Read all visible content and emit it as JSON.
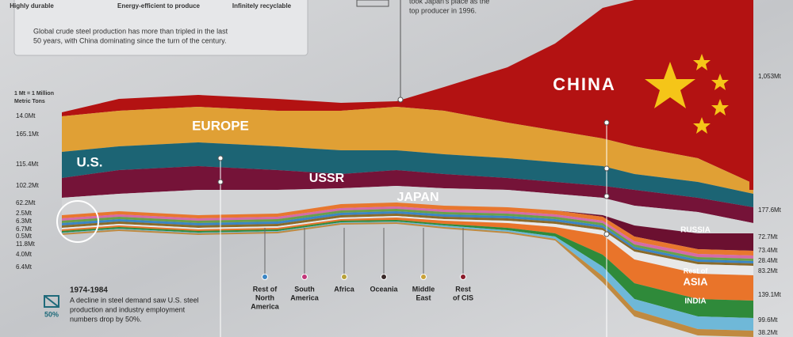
{
  "info_panel": {
    "features": [
      "Highly durable",
      "Energy-efficient to produce",
      "Infinitely recyclable"
    ],
    "text": [
      "Global crude steel production has more than tripled in the last",
      "50 years, with China dominating since the turn of the century."
    ]
  },
  "callout": {
    "lines": [
      "took Japan's place as the",
      "top producer in 1996."
    ]
  },
  "unit_note": [
    "1 Mt = 1 Million",
    "Metric Tons"
  ],
  "left_values": [
    "14.0Mt",
    "165.1Mt",
    "115.4Mt",
    "102.2Mt",
    "62.2Mt",
    "2.5Mt",
    "6.3Mt",
    "6.7Mt",
    "0.5Mt",
    "11.8Mt",
    "4.0Mt",
    "6.4Mt"
  ],
  "right_values": [
    "1,053Mt",
    "177.6Mt",
    "72.7Mt",
    "73.4Mt",
    "28.4Mt",
    "83.2Mt",
    "139.1Mt",
    "99.6Mt",
    "38.2Mt"
  ],
  "region_labels": {
    "china": "CHINA",
    "europe": "EUROPE",
    "us": "U.S.",
    "ussr": "USSR",
    "japan": "JAPAN",
    "russia": "RUSSIA",
    "rest_of_asia": [
      "Rest of",
      "ASIA"
    ],
    "india": "INDIA"
  },
  "legend": [
    {
      "lines": [
        "Rest of",
        "North",
        "America"
      ],
      "color": "#3b86c4"
    },
    {
      "lines": [
        "South",
        "America"
      ],
      "color": "#c2377a"
    },
    {
      "lines": [
        "Africa"
      ],
      "color": "#b8a23a"
    },
    {
      "lines": [
        "Oceania"
      ],
      "color": "#3a2a2a"
    },
    {
      "lines": [
        "Middle",
        "East"
      ],
      "color": "#c9a23a"
    },
    {
      "lines": [
        "Rest",
        "of CIS"
      ],
      "color": "#8a1a2a"
    }
  ],
  "note": {
    "years": "1974-1984",
    "text": [
      "A decline in steel demand saw U.S. steel",
      "production and industry employment",
      "numbers drop by 50%."
    ],
    "badge": "50%"
  }
}
